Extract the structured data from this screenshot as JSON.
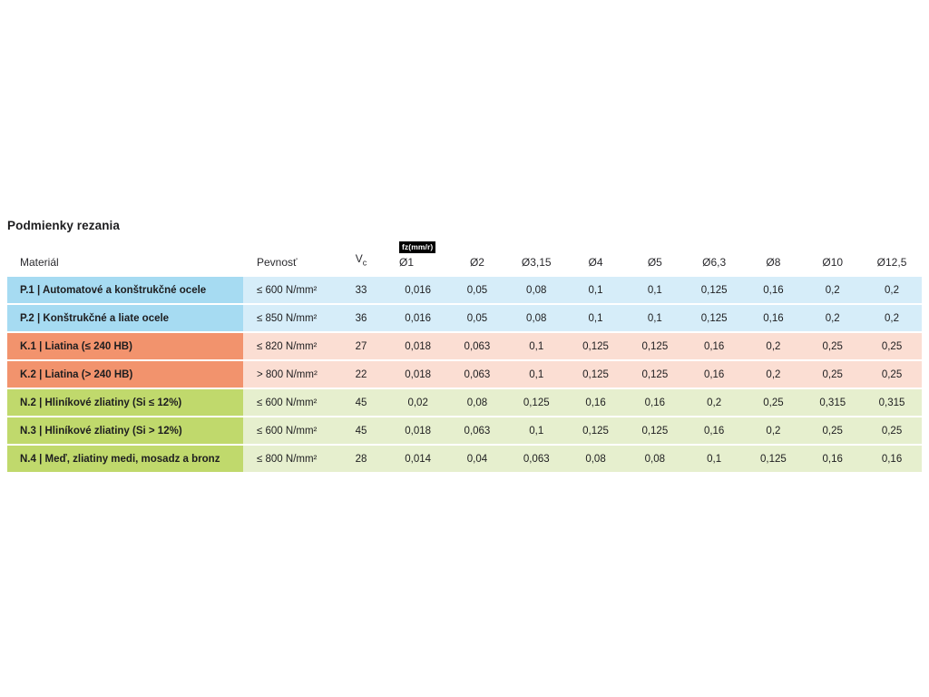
{
  "page": {
    "title": "Podmienky rezania"
  },
  "colors": {
    "blue": {
      "label": "#a6dbf2",
      "row": "#d6edf9"
    },
    "orange": {
      "label": "#f2936d",
      "row": "#fbded3"
    },
    "green": {
      "label": "#c0d96c",
      "row": "#e6efce"
    },
    "badge_bg": "#000000",
    "badge_text": "#ffffff",
    "text": "#1d1d1f"
  },
  "chart_data": {
    "type": "table",
    "title": "Podmienky rezania",
    "feed_unit_label": "fz(mm/r)",
    "headers": {
      "material": "Materiál",
      "strength": "Pevnosť",
      "vc_main": "V",
      "vc_sub": "c",
      "diameters": [
        "Ø1",
        "Ø2",
        "Ø3,15",
        "Ø4",
        "Ø5",
        "Ø6,3",
        "Ø8",
        "Ø10",
        "Ø12,5"
      ]
    },
    "rows": [
      {
        "group": "blue",
        "material": "P.1 | Automatové a konštrukčné ocele",
        "strength": "≤ 600 N/mm²",
        "vc": "33",
        "feeds": [
          "0,016",
          "0,05",
          "0,08",
          "0,1",
          "0,1",
          "0,125",
          "0,16",
          "0,2",
          "0,2"
        ]
      },
      {
        "group": "blue",
        "material": "P.2 | Konštrukčné a liate ocele",
        "strength": "≤ 850 N/mm²",
        "vc": "36",
        "feeds": [
          "0,016",
          "0,05",
          "0,08",
          "0,1",
          "0,1",
          "0,125",
          "0,16",
          "0,2",
          "0,2"
        ]
      },
      {
        "group": "orange",
        "material": "K.1 | Liatina (≤ 240 HB)",
        "strength": "≤ 820 N/mm²",
        "vc": "27",
        "feeds": [
          "0,018",
          "0,063",
          "0,1",
          "0,125",
          "0,125",
          "0,16",
          "0,2",
          "0,25",
          "0,25"
        ]
      },
      {
        "group": "orange",
        "material": "K.2 | Liatina (> 240 HB)",
        "strength": "> 800 N/mm²",
        "vc": "22",
        "feeds": [
          "0,018",
          "0,063",
          "0,1",
          "0,125",
          "0,125",
          "0,16",
          "0,2",
          "0,25",
          "0,25"
        ]
      },
      {
        "group": "green",
        "material": "N.2 | Hliníkové zliatiny (Si ≤ 12%)",
        "strength": "≤ 600 N/mm²",
        "vc": "45",
        "feeds": [
          "0,02",
          "0,08",
          "0,125",
          "0,16",
          "0,16",
          "0,2",
          "0,25",
          "0,315",
          "0,315"
        ]
      },
      {
        "group": "green",
        "material": "N.3 | Hliníkové zliatiny (Si > 12%)",
        "strength": "≤ 600 N/mm²",
        "vc": "45",
        "feeds": [
          "0,018",
          "0,063",
          "0,1",
          "0,125",
          "0,125",
          "0,16",
          "0,2",
          "0,25",
          "0,25"
        ]
      },
      {
        "group": "green",
        "material": "N.4 | Meď, zliatiny medi, mosadz a bronz",
        "strength": "≤ 800 N/mm²",
        "vc": "28",
        "feeds": [
          "0,014",
          "0,04",
          "0,063",
          "0,08",
          "0,08",
          "0,1",
          "0,125",
          "0,16",
          "0,16"
        ]
      }
    ]
  }
}
